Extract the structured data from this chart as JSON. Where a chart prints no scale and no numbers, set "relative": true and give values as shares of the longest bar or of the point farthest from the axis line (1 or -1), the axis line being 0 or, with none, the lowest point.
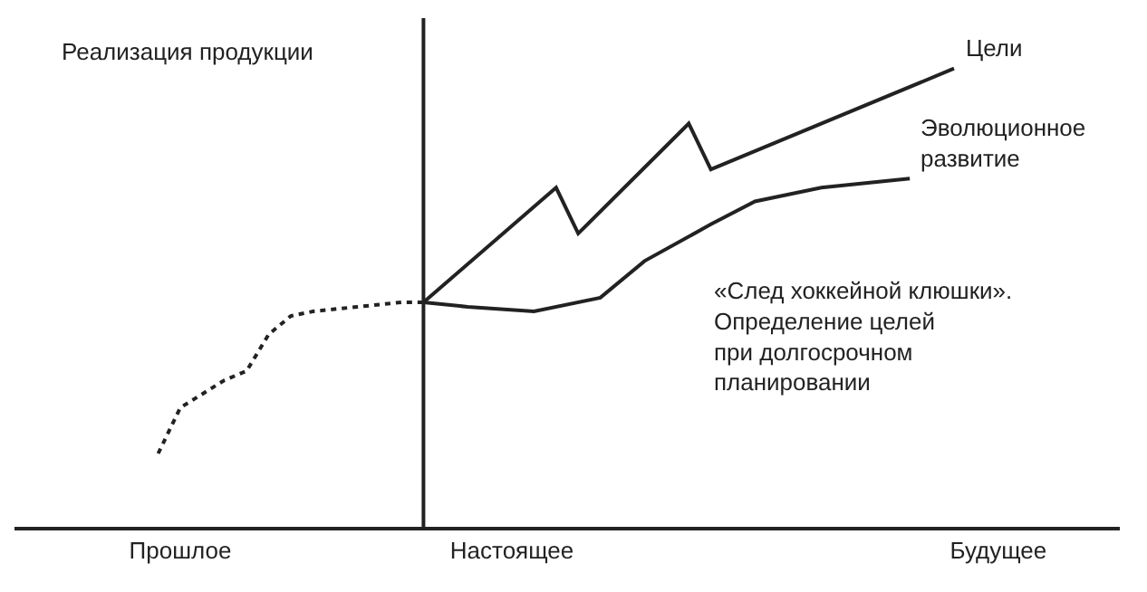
{
  "chart_data": {
    "type": "line",
    "relative": true,
    "ylabel": "Реализация продукции",
    "legend": false,
    "categories": [
      null,
      null,
      null,
      null,
      null,
      null,
      null,
      "Прошлое",
      null,
      null,
      null,
      null,
      null,
      null,
      null,
      null,
      null,
      null,
      null,
      null,
      null,
      null,
      "Настоящее",
      null,
      null,
      null,
      null,
      null,
      null,
      null,
      null,
      null,
      null,
      null,
      null,
      null,
      null,
      null,
      null,
      null,
      null,
      null,
      null,
      null,
      "Будущее",
      null,
      null,
      null,
      null,
      null
    ],
    "series": [
      {
        "color": "#222222",
        "line_style": "dotted",
        "values": [
          null,
          null,
          null,
          null,
          null,
          null,
          0.16,
          0.26,
          0.29,
          0.32,
          0.34,
          0.42,
          0.46,
          0.47,
          null,
          0.48,
          null,
          0.49,
          0.49,
          null,
          null,
          null,
          null,
          null,
          null,
          null,
          null,
          null,
          null,
          null,
          null,
          null,
          null,
          null,
          null,
          null,
          null,
          null,
          null,
          null,
          null,
          null,
          null,
          null,
          null,
          null,
          null,
          null,
          null,
          null
        ]
      },
      {
        "name": "Эволюционное развитие",
        "color": "#222222",
        "line_style": "solid",
        "values": [
          null,
          null,
          null,
          null,
          null,
          null,
          null,
          null,
          null,
          null,
          null,
          null,
          null,
          null,
          null,
          null,
          null,
          null,
          0.49,
          null,
          0.48,
          null,
          null,
          0.47,
          null,
          null,
          0.5,
          null,
          0.58,
          null,
          null,
          0.66,
          null,
          0.71,
          null,
          null,
          0.74,
          null,
          null,
          null,
          0.76,
          null,
          null,
          null,
          null,
          null,
          null,
          null,
          null,
          null
        ]
      },
      {
        "name": "Цели",
        "color": "#222222",
        "line_style": "solid",
        "values": [
          null,
          null,
          null,
          null,
          null,
          null,
          null,
          null,
          null,
          null,
          null,
          null,
          null,
          null,
          null,
          null,
          null,
          null,
          0.49,
          null,
          null,
          null,
          null,
          null,
          0.74,
          0.64,
          null,
          null,
          null,
          null,
          0.88,
          0.78,
          null,
          null,
          null,
          null,
          null,
          null,
          null,
          null,
          null,
          null,
          1,
          null,
          null,
          null,
          null,
          null,
          null,
          null
        ]
      }
    ],
    "annotations": [
      "«След хоккейной клюшки».\nОпределение целей\nпри долгосрочном\nпланировании"
    ]
  }
}
